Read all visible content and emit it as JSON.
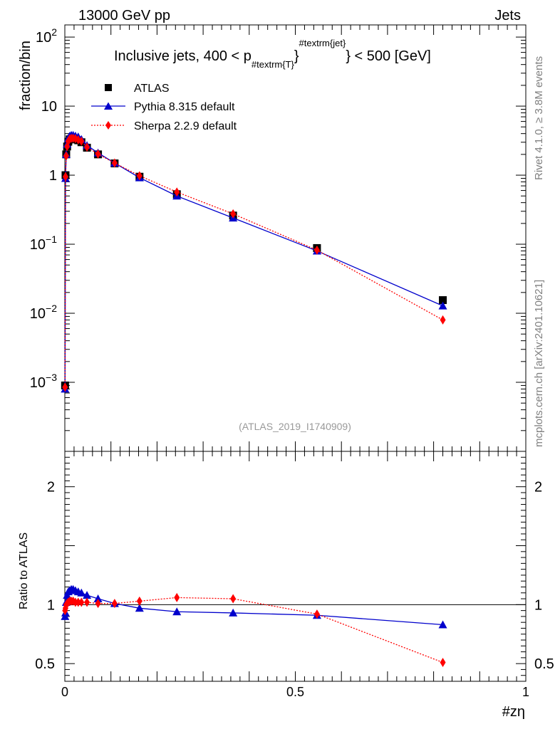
{
  "header": {
    "energy_label": "13000 GeV pp",
    "process_label": "Jets"
  },
  "side_labels": {
    "rivet": "Rivet 4.1.0, ≥ 3.8M events",
    "mcplots": "mcplots.cern.ch [arXiv:2401.10621]"
  },
  "chart_data": {
    "type": "scatter",
    "title_prefix": "Inclusive jets, 400 < p",
    "title_sub": "#textrm{T}",
    "title_sup": "#textrm{jet}",
    "title_suffix": "} < 500 [GeV]",
    "analysis_id": "(ATLAS_2019_I1740909)",
    "xlabel": "#zη",
    "ylabel": "fraction/bin",
    "ratio_ylabel": "Ratio to ATLAS",
    "xlim": [
      0,
      1
    ],
    "ylim": [
      0.0001,
      150
    ],
    "ratio_ylim": [
      0.35,
      2.3
    ],
    "x_ticks": [
      {
        "value": 0,
        "label": "0"
      },
      {
        "value": 0.5,
        "label": "0.5"
      },
      {
        "value": 1,
        "label": "1"
      }
    ],
    "y_ticks": [
      {
        "value": 0.001,
        "base": "10",
        "exp": "−3"
      },
      {
        "value": 0.01,
        "base": "10",
        "exp": "−2"
      },
      {
        "value": 0.1,
        "base": "10",
        "exp": "−1"
      },
      {
        "value": 1,
        "base": "1",
        "exp": ""
      },
      {
        "value": 10,
        "base": "10",
        "exp": ""
      },
      {
        "value": 100,
        "base": "10",
        "exp": "2"
      }
    ],
    "ratio_ticks": [
      {
        "value": 0.5,
        "label": "0.5"
      },
      {
        "value": 1,
        "label": "1"
      },
      {
        "value": 2,
        "label": "2"
      }
    ],
    "x": [
      0.0005,
      0.0015,
      0.003,
      0.005,
      0.0075,
      0.0105,
      0.014,
      0.018,
      0.023,
      0.029,
      0.036,
      0.048,
      0.072,
      0.108,
      0.162,
      0.243,
      0.365,
      0.547,
      0.82
    ],
    "series": [
      {
        "name": "ATLAS",
        "marker": "square",
        "color": "#000000",
        "line": "none",
        "values": [
          0.0009,
          1.0,
          2.0,
          2.6,
          3.05,
          3.3,
          3.35,
          3.35,
          3.3,
          3.2,
          3.0,
          2.5,
          2.0,
          1.48,
          0.95,
          0.53,
          0.26,
          0.088,
          0.0155
        ]
      },
      {
        "name": "Pythia 8.315 default",
        "marker": "triangle",
        "color": "#0000cc",
        "line": "solid",
        "values": [
          0.0008,
          0.9,
          2.0,
          2.8,
          3.4,
          3.7,
          3.8,
          3.8,
          3.7,
          3.6,
          3.3,
          2.7,
          2.1,
          1.5,
          0.92,
          0.5,
          0.24,
          0.08,
          0.0128
        ],
        "ratio": [
          0.9,
          0.93,
          1.02,
          1.08,
          1.11,
          1.12,
          1.13,
          1.13,
          1.12,
          1.11,
          1.1,
          1.08,
          1.05,
          1.01,
          0.97,
          0.94,
          0.93,
          0.91,
          0.83
        ]
      },
      {
        "name": "Sherpa 2.2.9 default",
        "marker": "diamond",
        "color": "#ff0000",
        "line": "dotted",
        "values": [
          0.00085,
          0.95,
          1.9,
          2.6,
          3.1,
          3.35,
          3.42,
          3.42,
          3.38,
          3.25,
          3.1,
          2.55,
          2.02,
          1.5,
          0.98,
          0.57,
          0.275,
          0.082,
          0.008
        ],
        "ratio": [
          0.95,
          0.97,
          1.0,
          1.01,
          1.02,
          1.03,
          1.03,
          1.03,
          1.02,
          1.02,
          1.02,
          1.02,
          1.01,
          1.01,
          1.03,
          1.06,
          1.05,
          0.92,
          0.51
        ]
      }
    ],
    "legend_position": "top-left"
  }
}
